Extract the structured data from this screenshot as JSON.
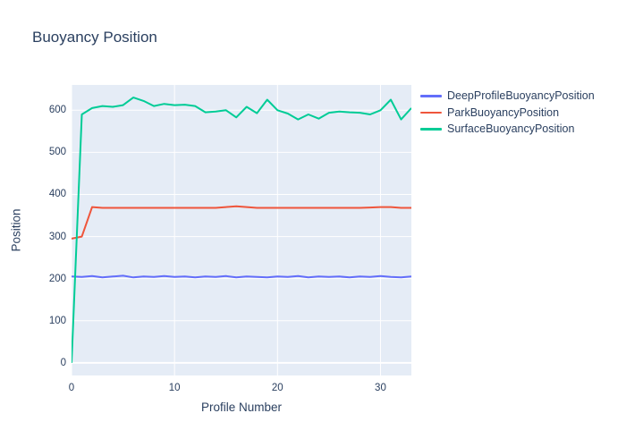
{
  "chart_data": {
    "type": "line",
    "title": "Buoyancy Position",
    "xlabel": "Profile Number",
    "ylabel": "Position",
    "xlim": [
      0,
      33
    ],
    "ylim": [
      -30,
      660
    ],
    "xticks": [
      0,
      10,
      20,
      30
    ],
    "yticks": [
      0,
      100,
      200,
      300,
      400,
      500,
      600
    ],
    "grid": true,
    "legend_position": "right",
    "plot_bgcolor": "#e5ecf6",
    "gridcolor": "#ffffff",
    "x": [
      0,
      1,
      2,
      3,
      4,
      5,
      6,
      7,
      8,
      9,
      10,
      11,
      12,
      13,
      14,
      15,
      16,
      17,
      18,
      19,
      20,
      21,
      22,
      23,
      24,
      25,
      26,
      27,
      28,
      29,
      30,
      31,
      32,
      33
    ],
    "series": [
      {
        "name": "DeepProfileBuoyancyPosition",
        "color": "#636efa",
        "values": [
          205,
          204,
          206,
          203,
          205,
          207,
          203,
          205,
          204,
          206,
          204,
          205,
          203,
          205,
          204,
          206,
          203,
          205,
          204,
          203,
          205,
          204,
          206,
          203,
          205,
          204,
          205,
          203,
          205,
          204,
          206,
          204,
          203,
          205
        ]
      },
      {
        "name": "ParkBuoyancyPosition",
        "color": "#ef553b",
        "values": [
          295,
          300,
          370,
          368,
          368,
          368,
          368,
          368,
          368,
          368,
          368,
          368,
          368,
          368,
          368,
          370,
          372,
          370,
          368,
          368,
          368,
          368,
          368,
          368,
          368,
          368,
          368,
          368,
          368,
          369,
          370,
          370,
          368,
          368
        ]
      },
      {
        "name": "SurfaceBuoyancyPosition",
        "color": "#00cc96",
        "values": [
          0,
          590,
          605,
          610,
          608,
          612,
          630,
          622,
          610,
          615,
          612,
          613,
          610,
          595,
          597,
          600,
          583,
          608,
          593,
          625,
          600,
          592,
          578,
          590,
          580,
          594,
          597,
          595,
          594,
          590,
          600,
          625,
          578,
          605
        ]
      }
    ]
  }
}
